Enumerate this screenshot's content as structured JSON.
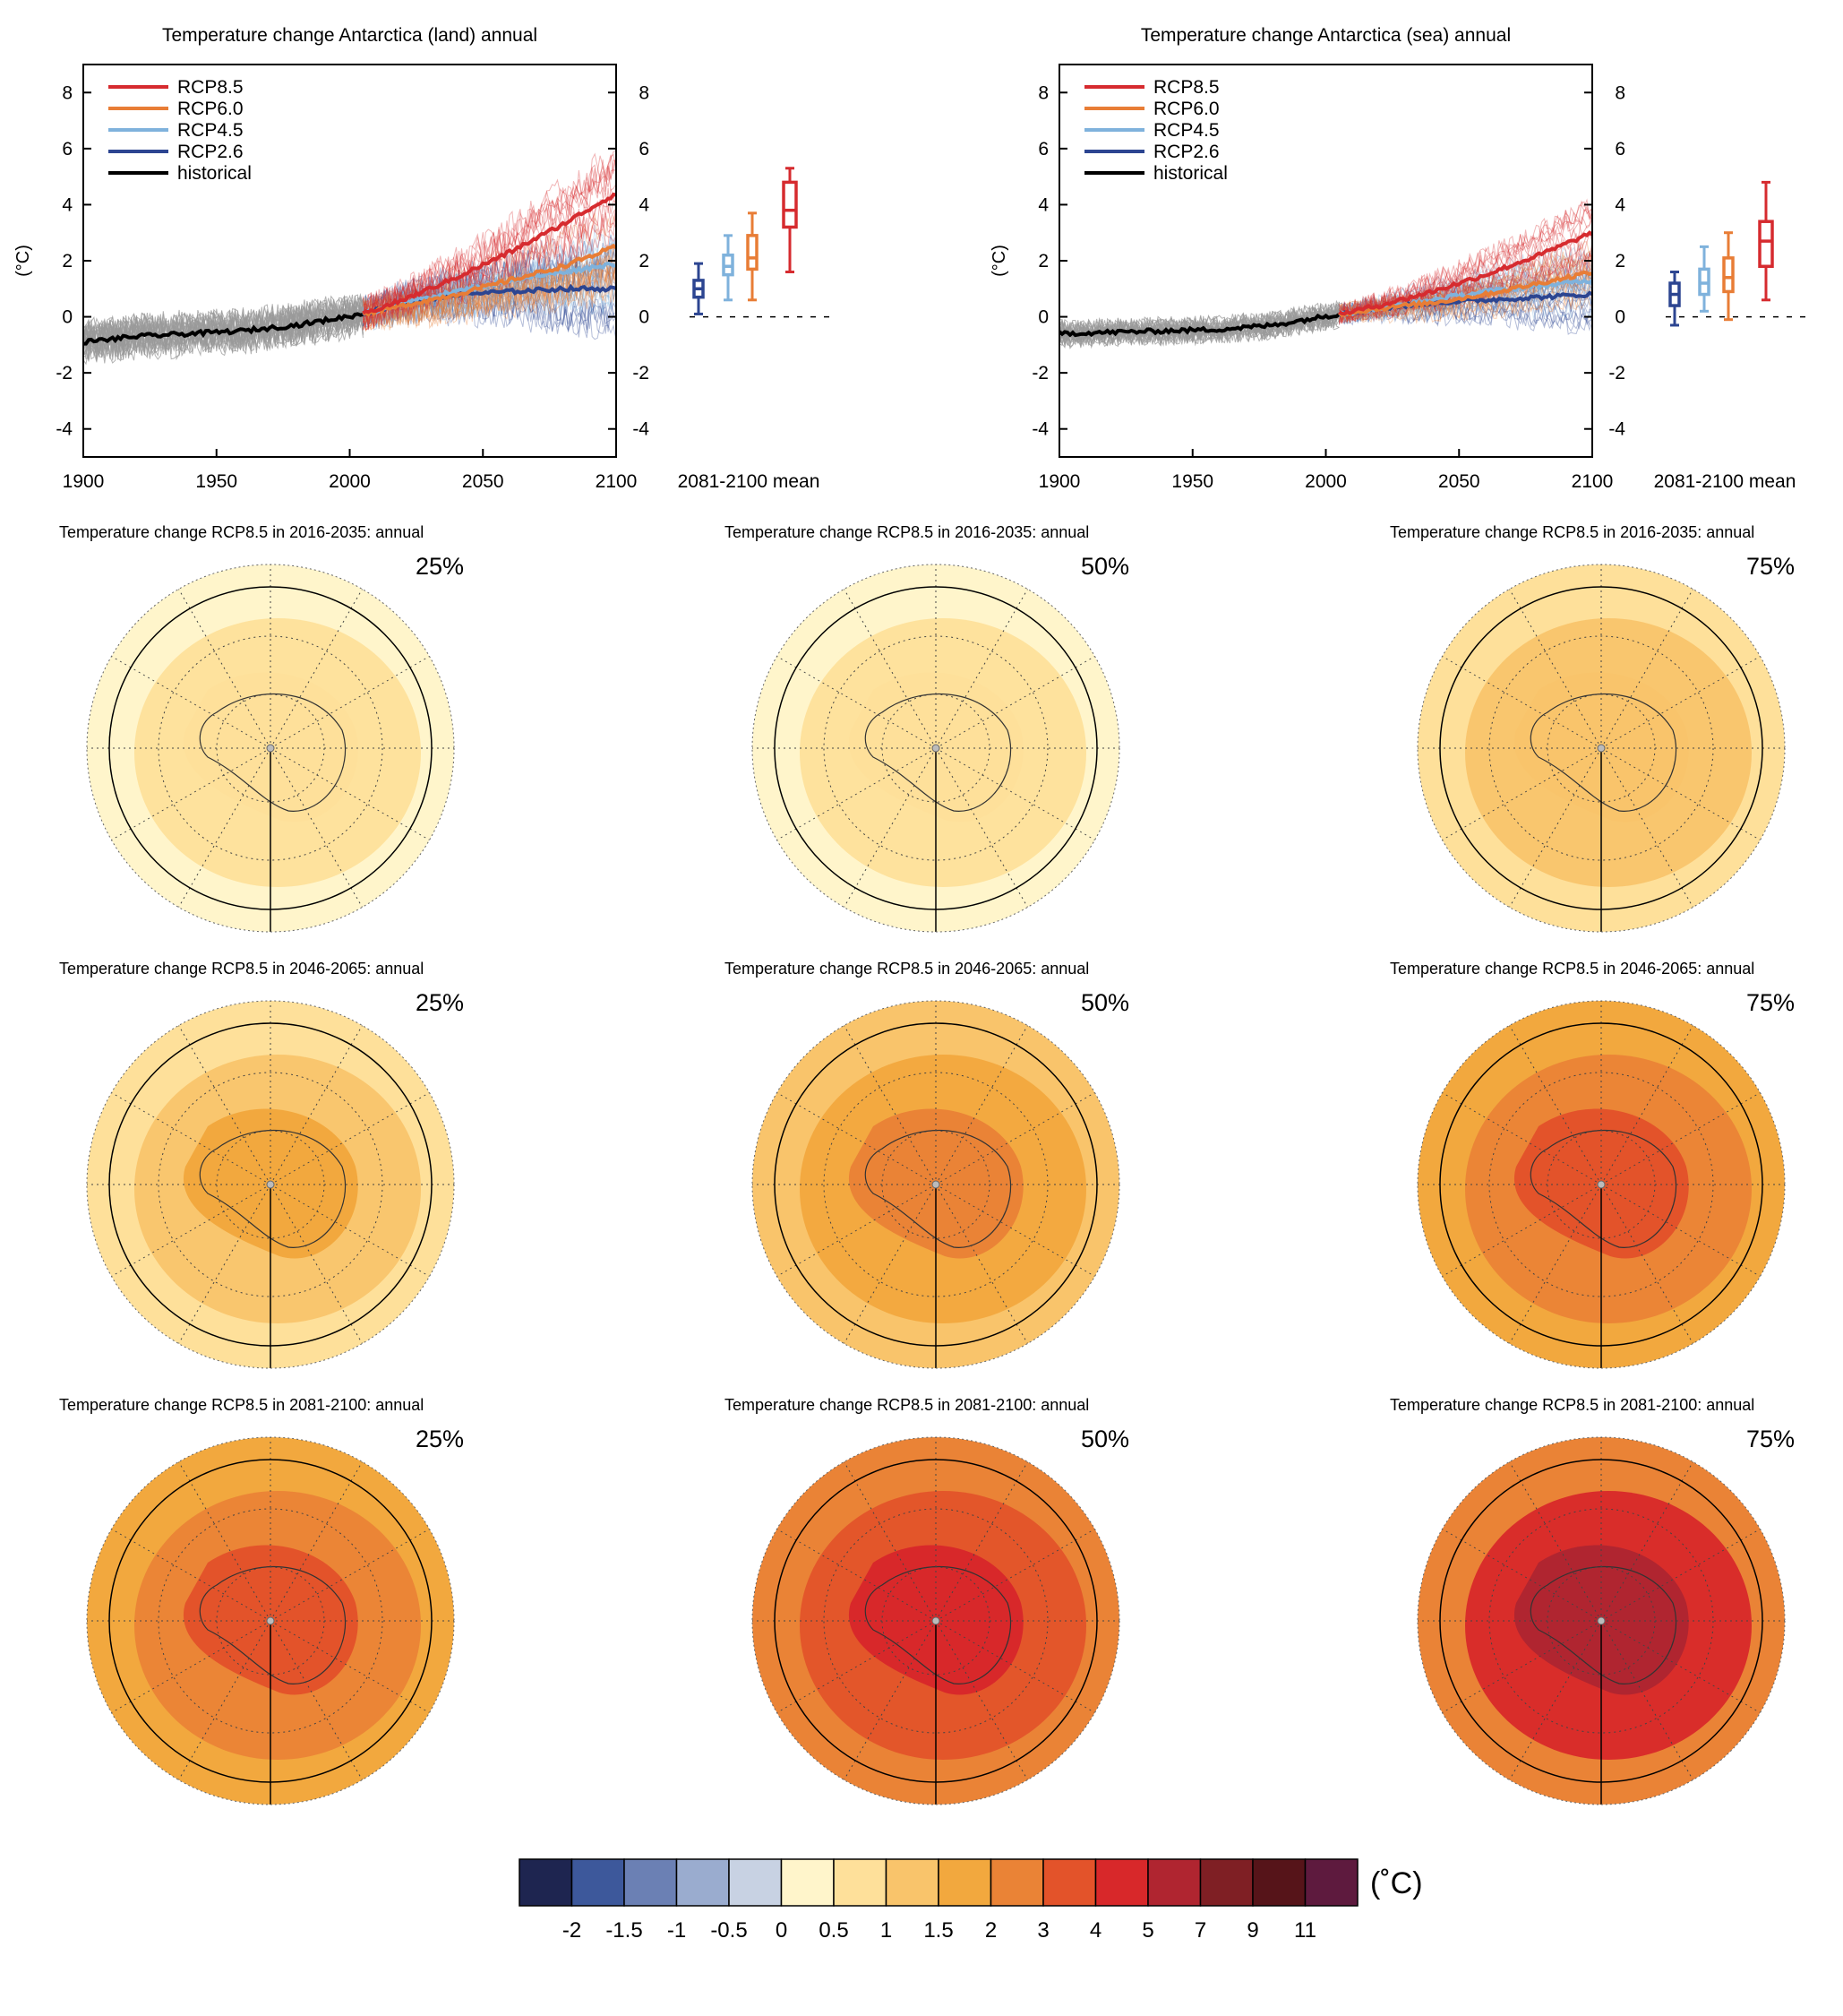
{
  "colors": {
    "rcp85": "#d62b2f",
    "rcp60": "#e87d36",
    "rcp45": "#7fb2dc",
    "rcp26": "#2c4591",
    "historical": "#000000",
    "model_hist": "#9a9a9a"
  },
  "chart_data": [
    {
      "type": "line",
      "title": "Temperature change Antarctica (land) annual",
      "ylabel": "(°C)",
      "xlim": [
        1900,
        2100
      ],
      "ylim": [
        -5,
        9
      ],
      "xticks": [
        "1900",
        "1950",
        "2000",
        "2050",
        "2100"
      ],
      "yticks": [
        "-4",
        "-2",
        "0",
        "2",
        "4",
        "6",
        "8"
      ],
      "legend": {
        "placement": "top-left",
        "entries": [
          "RCP8.5",
          "RCP6.0",
          "RCP4.5",
          "RCP2.6",
          "historical"
        ]
      },
      "series": [
        {
          "name": "historical",
          "x": [
            1900,
            1920,
            1940,
            1960,
            1980,
            2005
          ],
          "y": [
            -0.9,
            -0.7,
            -0.6,
            -0.5,
            -0.3,
            0.1
          ]
        },
        {
          "name": "RCP2.6",
          "x": [
            2005,
            2020,
            2040,
            2060,
            2080,
            2100
          ],
          "y": [
            0.1,
            0.5,
            0.8,
            0.9,
            1.0,
            1.0
          ]
        },
        {
          "name": "RCP4.5",
          "x": [
            2005,
            2020,
            2040,
            2060,
            2080,
            2100
          ],
          "y": [
            0.1,
            0.5,
            0.9,
            1.3,
            1.6,
            1.9
          ]
        },
        {
          "name": "RCP6.0",
          "x": [
            2005,
            2020,
            2040,
            2060,
            2080,
            2100
          ],
          "y": [
            0.1,
            0.4,
            0.8,
            1.3,
            1.8,
            2.5
          ]
        },
        {
          "name": "RCP8.5",
          "x": [
            2005,
            2020,
            2040,
            2060,
            2080,
            2100
          ],
          "y": [
            0.1,
            0.6,
            1.4,
            2.3,
            3.3,
            4.4
          ]
        }
      ],
      "boxes_label": "2081-2100 mean",
      "boxes": [
        {
          "name": "RCP2.6",
          "min": 0.1,
          "q1": 0.7,
          "median": 1.0,
          "q3": 1.3,
          "max": 1.9
        },
        {
          "name": "RCP4.5",
          "min": 0.6,
          "q1": 1.5,
          "median": 1.8,
          "q3": 2.2,
          "max": 2.9
        },
        {
          "name": "RCP6.0",
          "min": 0.6,
          "q1": 1.7,
          "median": 2.1,
          "q3": 2.9,
          "max": 3.7
        },
        {
          "name": "RCP8.5",
          "min": 1.6,
          "q1": 3.2,
          "median": 3.8,
          "q3": 4.8,
          "max": 5.3
        }
      ]
    },
    {
      "type": "line",
      "title": "Temperature change Antarctica (sea) annual",
      "ylabel": "(°C)",
      "xlim": [
        1900,
        2100
      ],
      "ylim": [
        -5,
        9
      ],
      "xticks": [
        "1900",
        "1950",
        "2000",
        "2050",
        "2100"
      ],
      "yticks": [
        "-4",
        "-2",
        "0",
        "2",
        "4",
        "6",
        "8"
      ],
      "legend": {
        "placement": "top-left",
        "entries": [
          "RCP8.5",
          "RCP6.0",
          "RCP4.5",
          "RCP2.6",
          "historical"
        ]
      },
      "series": [
        {
          "name": "historical",
          "x": [
            1900,
            1920,
            1940,
            1960,
            1980,
            2005
          ],
          "y": [
            -0.6,
            -0.55,
            -0.5,
            -0.45,
            -0.3,
            0.1
          ]
        },
        {
          "name": "RCP2.6",
          "x": [
            2005,
            2020,
            2040,
            2060,
            2080,
            2100
          ],
          "y": [
            0.1,
            0.3,
            0.5,
            0.6,
            0.7,
            0.8
          ]
        },
        {
          "name": "RCP4.5",
          "x": [
            2005,
            2020,
            2040,
            2060,
            2080,
            2100
          ],
          "y": [
            0.1,
            0.3,
            0.6,
            0.9,
            1.1,
            1.3
          ]
        },
        {
          "name": "RCP6.0",
          "x": [
            2005,
            2020,
            2040,
            2060,
            2080,
            2100
          ],
          "y": [
            0.1,
            0.3,
            0.5,
            0.8,
            1.2,
            1.6
          ]
        },
        {
          "name": "RCP8.5",
          "x": [
            2005,
            2020,
            2040,
            2060,
            2080,
            2100
          ],
          "y": [
            0.1,
            0.4,
            0.9,
            1.5,
            2.2,
            3.0
          ]
        }
      ],
      "boxes_label": "2081-2100 mean",
      "boxes": [
        {
          "name": "RCP2.6",
          "min": -0.3,
          "q1": 0.4,
          "median": 0.8,
          "q3": 1.2,
          "max": 1.6
        },
        {
          "name": "RCP4.5",
          "min": 0.2,
          "q1": 0.8,
          "median": 1.2,
          "q3": 1.7,
          "max": 2.5
        },
        {
          "name": "RCP6.0",
          "min": -0.1,
          "q1": 0.9,
          "median": 1.4,
          "q3": 2.1,
          "max": 3.0
        },
        {
          "name": "RCP8.5",
          "min": 0.6,
          "q1": 1.8,
          "median": 2.7,
          "q3": 3.4,
          "max": 4.8
        }
      ]
    },
    {
      "type": "heatmap",
      "maps": [
        {
          "title": "Temperature change RCP8.5 in 2016-2035: annual",
          "percentile": "25%",
          "levels": [
            0.25,
            0.75
          ]
        },
        {
          "title": "Temperature change RCP8.5 in 2016-2035: annual",
          "percentile": "50%",
          "levels": [
            0.25,
            0.75
          ]
        },
        {
          "title": "Temperature change RCP8.5 in 2016-2035: annual",
          "percentile": "75%",
          "levels": [
            0.75,
            1.25
          ]
        },
        {
          "title": "Temperature change RCP8.5 in 2046-2065: annual",
          "percentile": "25%",
          "levels": [
            0.75,
            1.25,
            1.75
          ]
        },
        {
          "title": "Temperature change RCP8.5 in 2046-2065: annual",
          "percentile": "50%",
          "levels": [
            1.25,
            1.75,
            2.5
          ]
        },
        {
          "title": "Temperature change RCP8.5 in 2046-2065: annual",
          "percentile": "75%",
          "levels": [
            1.75,
            2.5,
            3.5
          ]
        },
        {
          "title": "Temperature change RCP8.5 in 2081-2100: annual",
          "percentile": "25%",
          "levels": [
            1.75,
            2.5,
            3.5
          ]
        },
        {
          "title": "Temperature change RCP8.5 in 2081-2100: annual",
          "percentile": "50%",
          "levels": [
            2.5,
            3.5,
            4.5
          ]
        },
        {
          "title": "Temperature change RCP8.5 in 2081-2100: annual",
          "percentile": "75%",
          "levels": [
            2.5,
            4.5,
            6
          ]
        }
      ]
    }
  ],
  "colorbar": {
    "unit": "(˚C)",
    "colors": [
      "#1e2550",
      "#3d589b",
      "#6b80b4",
      "#9aaccf",
      "#c8d2e3",
      "#fff5cb",
      "#fee09a",
      "#f9c46b",
      "#f2a83e",
      "#ea8336",
      "#e3532a",
      "#d8282a",
      "#b02530",
      "#7f1f24",
      "#561419",
      "#5e1a3e"
    ],
    "labels": [
      "-2",
      "-1.5",
      "-1",
      "-0.5",
      "0",
      "0.5",
      "1",
      "1.5",
      "2",
      "3",
      "4",
      "5",
      "7",
      "9",
      "11"
    ]
  }
}
